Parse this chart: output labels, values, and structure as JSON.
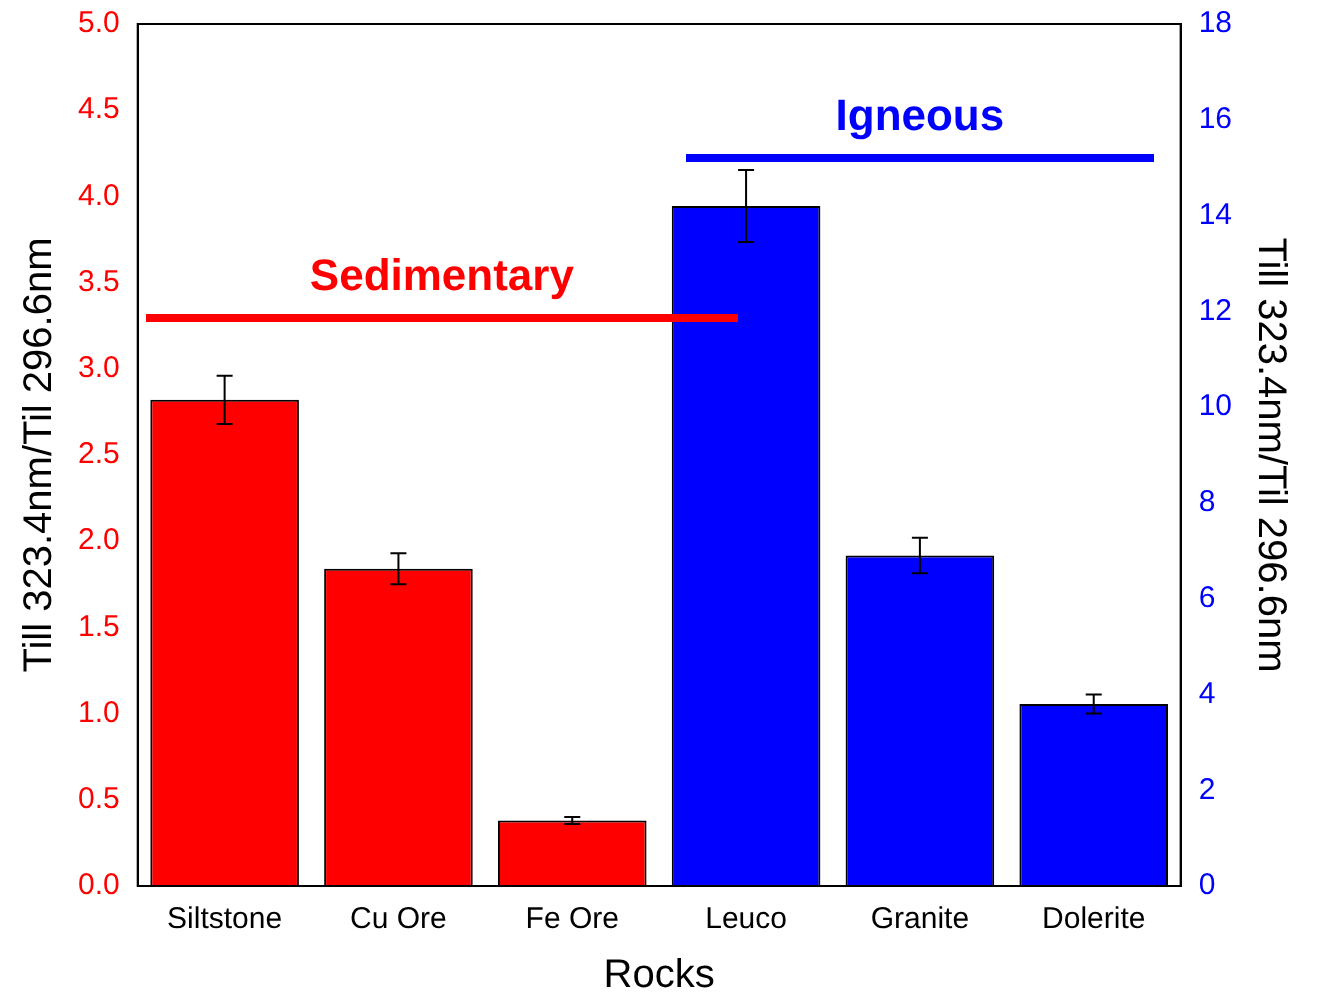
{
  "chart_data": {
    "type": "bar",
    "xlabel": "Rocks",
    "ylabel": "Till 323.4nm/Til 296.6nm",
    "y2label": "Till 323.4nm/Til 296.6nm",
    "categories": [
      "Siltstone",
      "Cu Ore",
      "Fe Ore",
      "Leuco",
      "Granite",
      "Dolerite"
    ],
    "series": [
      {
        "color": "#ff0000",
        "values": [
          2.82,
          1.84,
          0.38,
          null,
          null,
          null
        ],
        "errors": [
          0.14,
          0.09,
          0.02,
          null,
          null,
          null
        ]
      },
      {
        "color": "#0000ff",
        "axis": "y2",
        "values": [
          null,
          null,
          null,
          14.2,
          6.9,
          3.8
        ],
        "errors": [
          null,
          null,
          null,
          0.75,
          0.37,
          0.2
        ]
      }
    ],
    "ylim": [
      0,
      5
    ],
    "yticks": [
      {
        "value": 0,
        "label": "0.0"
      },
      {
        "value": 0.5,
        "label": "0.5"
      },
      {
        "value": 1,
        "label": "1.0"
      },
      {
        "value": 1.5,
        "label": "1.5"
      },
      {
        "value": 2,
        "label": "2.0"
      },
      {
        "value": 2.5,
        "label": "2.5"
      },
      {
        "value": 3,
        "label": "3.0"
      },
      {
        "value": 3.5,
        "label": "3.5"
      },
      {
        "value": 4,
        "label": "4.0"
      },
      {
        "value": 4.5,
        "label": "4.5"
      },
      {
        "value": 5,
        "label": "5.0"
      }
    ],
    "y2lim": [
      0,
      18
    ],
    "y2ticks": [
      0,
      2,
      4,
      6,
      8,
      10,
      12,
      14,
      16,
      18
    ],
    "annotations": [
      "Sedimentary",
      "Igneous"
    ],
    "grid": false,
    "legend": false
  }
}
